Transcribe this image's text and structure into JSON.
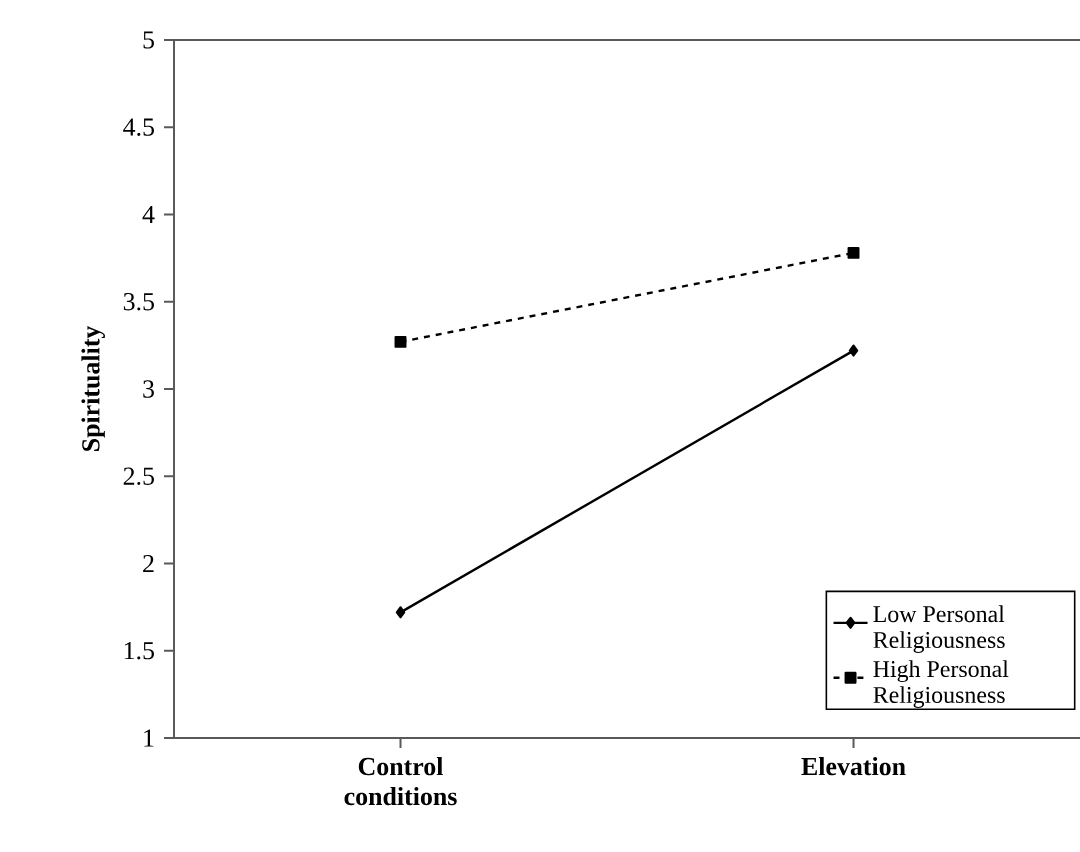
{
  "chart_data": {
    "type": "line",
    "ylabel": "Spirituality",
    "categories": [
      "Control conditions",
      "Elevation"
    ],
    "series": [
      {
        "name": "Low Personal Religiousness",
        "color": "#000000",
        "values": [
          1.72,
          3.22
        ],
        "marker": "diamond",
        "line_style": "solid"
      },
      {
        "name": "High Personal Religiousness",
        "color": "#000000",
        "values": [
          3.27,
          3.78
        ],
        "marker": "square",
        "line_style": "dashed"
      }
    ],
    "ylim": [
      1,
      5
    ],
    "yticks": [
      1,
      1.5,
      2,
      2.5,
      3,
      3.5,
      4,
      4.5,
      5
    ],
    "legend": "bottom right"
  }
}
